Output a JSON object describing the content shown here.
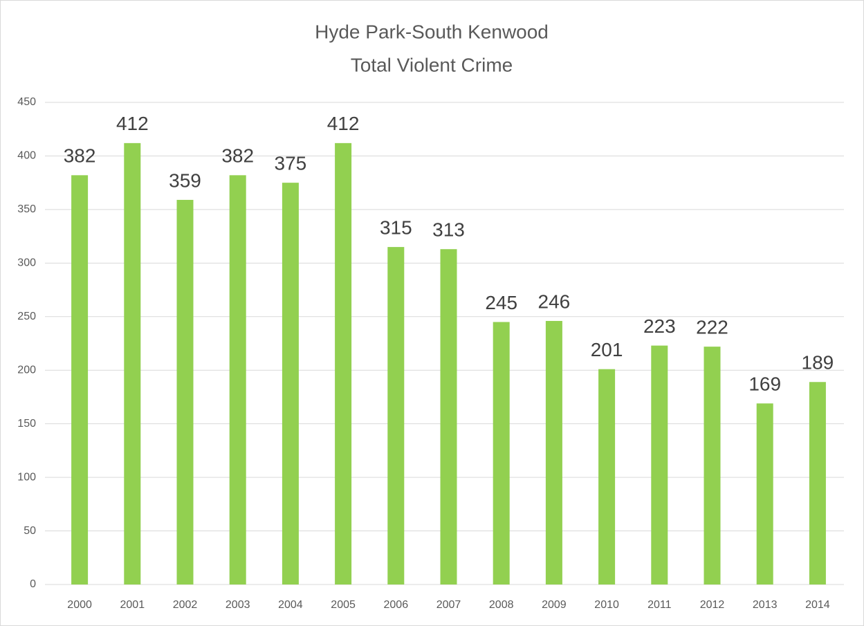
{
  "chart_data": {
    "type": "bar",
    "title": [
      "Hyde Park-South Kenwood",
      "Total Violent Crime"
    ],
    "categories": [
      "2000",
      "2001",
      "2002",
      "2003",
      "2004",
      "2005",
      "2006",
      "2007",
      "2008",
      "2009",
      "2010",
      "2011",
      "2012",
      "2013",
      "2014"
    ],
    "values": [
      382,
      412,
      359,
      382,
      375,
      412,
      315,
      313,
      245,
      246,
      201,
      223,
      222,
      169,
      189
    ],
    "color": "#92d050",
    "ylim": [
      0,
      450
    ],
    "yticks": [
      0,
      50,
      100,
      150,
      200,
      250,
      300,
      350,
      400,
      450
    ],
    "grid": true
  }
}
